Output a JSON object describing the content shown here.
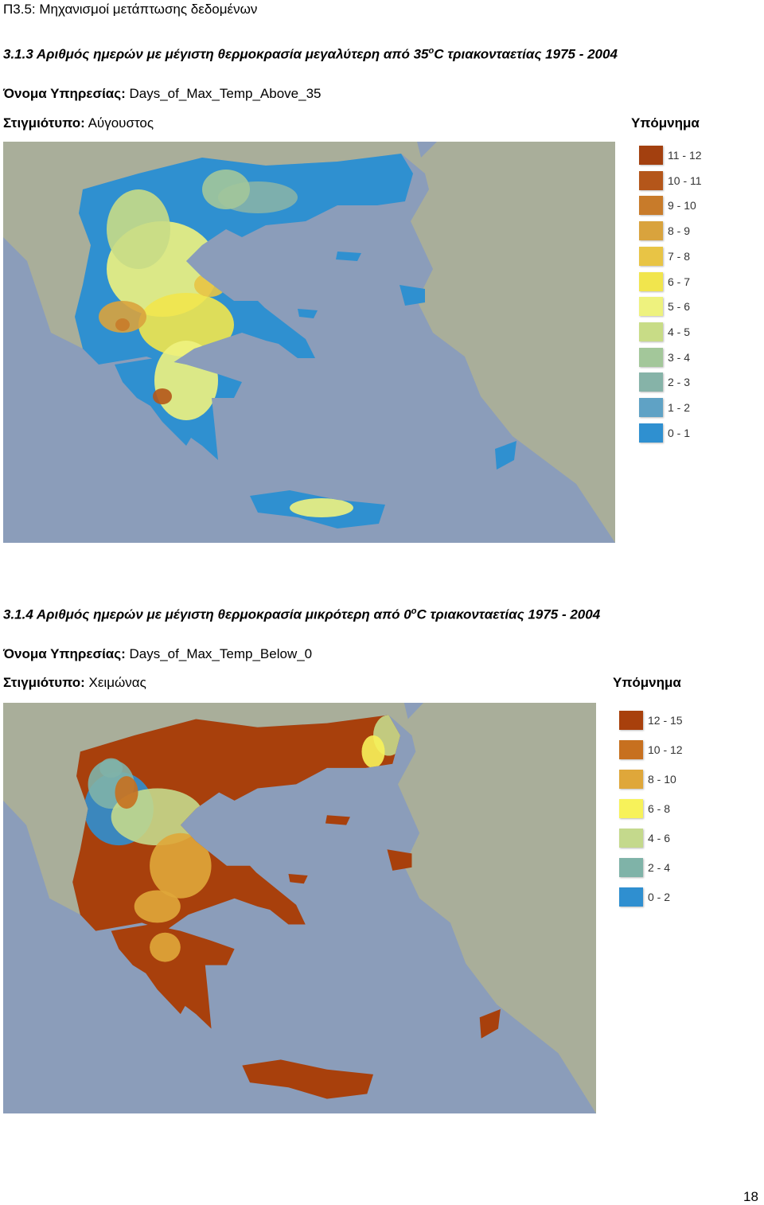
{
  "header": {
    "title": "Π3.5: Μηχανισμοί μετάπτωσης δεδομένων"
  },
  "sections": [
    {
      "heading": {
        "text": "3.1.3 Αριθμός ημερών με μέγιστη θερμοκρασία μεγαλύτερη από 35",
        "superscript": "o",
        "rest": "C τριακονταετίας 1975 - 2004"
      },
      "service_label": "Όνομα Υπηρεσίας:",
      "service_name": "Days_of_Max_Temp_Above_35",
      "snapshot_label": "Στιγμιότυπο:",
      "snapshot": "Αύγουστος",
      "legend": {
        "title": "Υπόμνημα",
        "items": [
          {
            "label": "11 - 12",
            "color": "#a3400f"
          },
          {
            "label": "10 - 11",
            "color": "#b4561a"
          },
          {
            "label": "9 - 10",
            "color": "#c87b2a"
          },
          {
            "label": "8 - 9",
            "color": "#d9a33d"
          },
          {
            "label": "7 - 8",
            "color": "#e8c445"
          },
          {
            "label": "6 - 7",
            "color": "#f1e54d"
          },
          {
            "label": "5 - 6",
            "color": "#eef27e"
          },
          {
            "label": "4 - 5",
            "color": "#c8dc86"
          },
          {
            "label": "3 - 4",
            "color": "#a3c79a"
          },
          {
            "label": "2 - 3",
            "color": "#86b3a8"
          },
          {
            "label": "1 - 2",
            "color": "#5fa2c5"
          },
          {
            "label": "0 - 1",
            "color": "#2f90d0"
          }
        ]
      }
    },
    {
      "heading": {
        "text": "3.1.4 Αριθμός ημερών με μέγιστη θερμοκρασία μικρότερη από 0",
        "superscript": "o",
        "rest": "C τριακονταετίας 1975 - 2004"
      },
      "service_label": "Όνομα Υπηρεσίας:",
      "service_name": "Days_of_Max_Temp_Below_0",
      "snapshot_label": "Στιγμιότυπο:",
      "snapshot": "Χειμώνας",
      "legend": {
        "title": "Υπόμνημα",
        "items": [
          {
            "label": "12 - 15",
            "color": "#a8400c"
          },
          {
            "label": "10 - 12",
            "color": "#c7701f"
          },
          {
            "label": "8 - 10",
            "color": "#dfa73a"
          },
          {
            "label": "6 - 8",
            "color": "#f7f25a"
          },
          {
            "label": "4 - 6",
            "color": "#c4d98c"
          },
          {
            "label": "2 - 4",
            "color": "#7fb3a8"
          },
          {
            "label": "0 - 2",
            "color": "#2f8fd0"
          }
        ]
      }
    }
  ],
  "footer": {
    "page_number": "18"
  }
}
